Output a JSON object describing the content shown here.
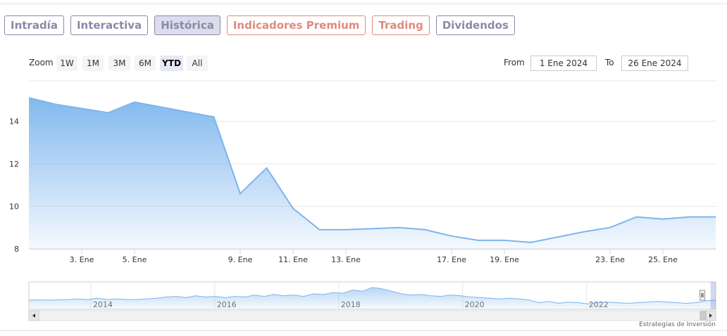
{
  "tabs": [
    {
      "label": "Intradía",
      "color": "#8a8aa8",
      "active": false
    },
    {
      "label": "Interactiva",
      "color": "#8a8aa8",
      "active": false
    },
    {
      "label": "Histórica",
      "color": "#8a8aa8",
      "active": true
    },
    {
      "label": "Indicadores Premium",
      "color": "#e08b7d",
      "active": false
    },
    {
      "label": "Trading",
      "color": "#e08b7d",
      "active": false
    },
    {
      "label": "Dividendos",
      "color": "#8a8aa8",
      "active": false
    }
  ],
  "zoom": {
    "label": "Zoom",
    "buttons": [
      "1W",
      "1M",
      "3M",
      "6M",
      "YTD",
      "All"
    ],
    "selected": "YTD"
  },
  "range": {
    "from_label": "From",
    "from_value": "1 Ene 2024",
    "to_label": "To",
    "to_value": "26 Ene 2024"
  },
  "credit": "Estrategias de Inversión",
  "colors": {
    "line": "#7cb5ec",
    "fill_top": "#7cb5ec",
    "grid": "#e6e6e6",
    "axis_text": "#333333"
  },
  "chart_data": {
    "type": "area",
    "x": [
      "2024-01-01",
      "2024-01-02",
      "2024-01-04",
      "2024-01-05",
      "2024-01-08",
      "2024-01-09",
      "2024-01-10",
      "2024-01-11",
      "2024-01-12",
      "2024-01-13",
      "2024-01-15",
      "2024-01-16",
      "2024-01-17",
      "2024-01-18",
      "2024-01-19",
      "2024-01-20",
      "2024-01-22",
      "2024-01-23",
      "2024-01-24",
      "2024-01-25",
      "2024-01-26",
      "2024-01-27"
    ],
    "values": [
      15.1,
      14.8,
      14.4,
      14.9,
      14.2,
      10.6,
      11.8,
      9.9,
      8.9,
      8.9,
      9.0,
      8.9,
      8.6,
      8.4,
      8.4,
      8.3,
      8.8,
      9.0,
      9.5,
      9.4,
      9.5,
      9.5
    ],
    "xlim": [
      "2024-01-01",
      "2024-01-27"
    ],
    "ylim": [
      8,
      15.9
    ],
    "yticks": [
      8,
      10,
      12,
      14
    ],
    "xticks": [
      {
        "date": "2024-01-03",
        "label": "3. Ene"
      },
      {
        "date": "2024-01-05",
        "label": "5. Ene"
      },
      {
        "date": "2024-01-09",
        "label": "9. Ene"
      },
      {
        "date": "2024-01-11",
        "label": "11. Ene"
      },
      {
        "date": "2024-01-13",
        "label": "13. Ene"
      },
      {
        "date": "2024-01-17",
        "label": "17. Ene"
      },
      {
        "date": "2024-01-19",
        "label": "19. Ene"
      },
      {
        "date": "2024-01-23",
        "label": "23. Ene"
      },
      {
        "date": "2024-01-25",
        "label": "25. Ene"
      }
    ],
    "grid": true,
    "navigator": {
      "xlim": [
        "2013-01-01",
        "2024-02-01"
      ],
      "year_labels": [
        {
          "date": "2014-01-01",
          "label": "2014"
        },
        {
          "date": "2016-01-01",
          "label": "2016"
        },
        {
          "date": "2018-01-01",
          "label": "2018"
        },
        {
          "date": "2020-01-01",
          "label": "2020"
        },
        {
          "date": "2022-01-01",
          "label": "2022"
        }
      ],
      "values": [
        10,
        10.5,
        10,
        10.5,
        11,
        12,
        11,
        13,
        11,
        12,
        11,
        11,
        12,
        13,
        15,
        16,
        14,
        17,
        15,
        16,
        14,
        16,
        15,
        18,
        16,
        19,
        17,
        18,
        16,
        20,
        19,
        22,
        21,
        26,
        24,
        30,
        28,
        24,
        20,
        18,
        19,
        17,
        16,
        18,
        17,
        15,
        14,
        13,
        12,
        13,
        12,
        10,
        6,
        8,
        5,
        7,
        6,
        4,
        6,
        7,
        6,
        5,
        6,
        7,
        8,
        7,
        6,
        5,
        6,
        9,
        10
      ]
    }
  }
}
